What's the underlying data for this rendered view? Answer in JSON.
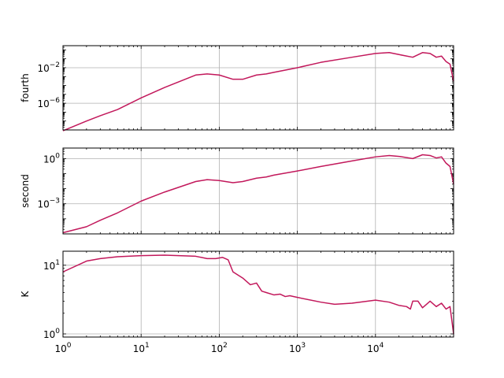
{
  "chart_data": {
    "type": "line",
    "xscale": "log",
    "xlim": [
      1,
      100000
    ],
    "x_ticklabels": [
      "10^0",
      "10^1",
      "10^2",
      "10^3",
      "10^4"
    ],
    "grid": true,
    "line_color": "#c2185b",
    "panels": [
      {
        "ylabel": "fourth",
        "yscale": "log",
        "ylim": [
          1e-09,
          3
        ],
        "ytick_values": [
          0.01,
          1e-06
        ],
        "ytick_labels": [
          {
            "base": "10",
            "exp": "-2"
          },
          {
            "base": "10",
            "exp": "-6"
          }
        ],
        "series": [
          {
            "x": [
              1,
              2,
              3,
              5,
              10,
              20,
              50,
              70,
              100,
              150,
              200,
              300,
              400,
              500,
              1000,
              2000,
              5000,
              10000,
              15000,
              20000,
              30000,
              40000,
              50000,
              60000,
              70000,
              80000,
              90000,
              100000
            ],
            "y": [
              8e-10,
              1e-08,
              4e-08,
              2e-07,
              4e-06,
              6e-05,
              0.0015,
              0.002,
              0.0015,
              0.0005,
              0.0005,
              0.0015,
              0.002,
              0.003,
              0.01,
              0.04,
              0.15,
              0.4,
              0.5,
              0.3,
              0.15,
              0.5,
              0.4,
              0.15,
              0.2,
              0.05,
              0.025,
              0.0003
            ]
          }
        ]
      },
      {
        "ylabel": "second",
        "yscale": "log",
        "ylim": [
          1e-05,
          5
        ],
        "ytick_values": [
          1,
          0.001
        ],
        "ytick_labels": [
          {
            "base": "10",
            "exp": "0"
          },
          {
            "base": "10",
            "exp": "-3"
          }
        ],
        "series": [
          {
            "x": [
              1,
              2,
              3,
              5,
              10,
              20,
              50,
              70,
              100,
              150,
              200,
              300,
              400,
              500,
              1000,
              2000,
              5000,
              10000,
              15000,
              20000,
              30000,
              40000,
              50000,
              60000,
              70000,
              80000,
              90000,
              100000
            ],
            "y": [
              1.2e-05,
              3e-05,
              8e-05,
              0.00025,
              0.0015,
              0.006,
              0.03,
              0.04,
              0.035,
              0.025,
              0.03,
              0.05,
              0.06,
              0.08,
              0.15,
              0.3,
              0.7,
              1.3,
              1.6,
              1.4,
              1.0,
              1.8,
              1.6,
              1.1,
              1.3,
              0.5,
              0.3,
              0.02
            ]
          }
        ]
      },
      {
        "ylabel": "K",
        "yscale": "log",
        "ylim": [
          0.9,
          16
        ],
        "ytick_values": [
          10,
          1
        ],
        "ytick_labels": [
          {
            "base": "10",
            "exp": "1"
          },
          {
            "base": "10",
            "exp": "0"
          }
        ],
        "series": [
          {
            "x": [
              1,
              2,
              3,
              5,
              10,
              20,
              50,
              70,
              90,
              110,
              130,
              150,
              200,
              250,
              300,
              350,
              400,
              500,
              600,
              700,
              800,
              1000,
              2000,
              3000,
              5000,
              8000,
              10000,
              15000,
              20000,
              25000,
              28000,
              30000,
              35000,
              40000,
              45000,
              50000,
              60000,
              70000,
              80000,
              90000,
              100000
            ],
            "y": [
              8,
              11.5,
              12.5,
              13.3,
              13.8,
              14,
              13.5,
              12.5,
              12.5,
              13,
              12,
              8,
              6.5,
              5.2,
              5.5,
              4.2,
              4.0,
              3.7,
              3.8,
              3.5,
              3.6,
              3.4,
              2.9,
              2.7,
              2.8,
              3.0,
              3.1,
              2.9,
              2.6,
              2.5,
              2.3,
              3.0,
              3.0,
              2.4,
              2.7,
              3.0,
              2.5,
              2.8,
              2.3,
              2.5,
              1.0
            ]
          }
        ]
      }
    ]
  }
}
